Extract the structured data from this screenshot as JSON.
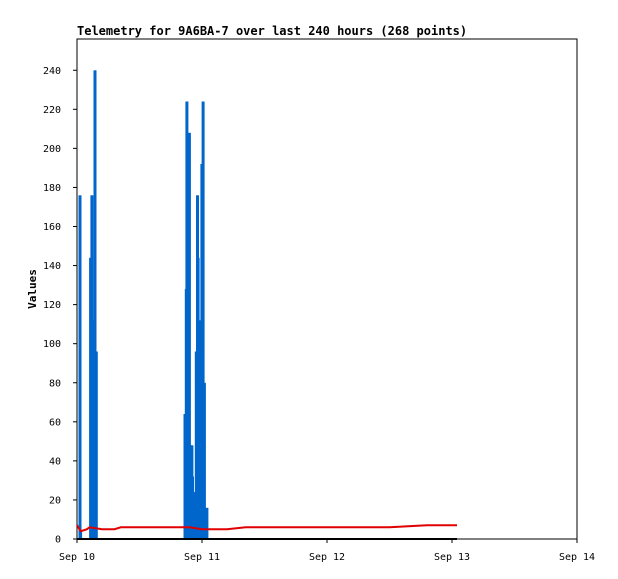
{
  "chart_data": {
    "type": "bar",
    "title": "Telemetry for 9A6BA-7 over last 240 hours (268 points)",
    "xlabel": "",
    "ylabel": "Values",
    "x_tick_labels": [
      "Sep 10",
      "Sep 11",
      "Sep 12",
      "Sep 13",
      "Sep 14"
    ],
    "xlim_days": [
      0,
      4
    ],
    "ylim": [
      0,
      256
    ],
    "y_ticks": [
      0,
      20,
      40,
      60,
      80,
      100,
      120,
      140,
      160,
      180,
      200,
      220,
      240
    ],
    "grid": false,
    "legend": "none",
    "series": [
      {
        "style": "bar",
        "color": "#0066cc",
        "points": [
          {
            "x": 0.02,
            "y": 176
          },
          {
            "x": 0.025,
            "y": 4
          },
          {
            "x": 0.105,
            "y": 144
          },
          {
            "x": 0.115,
            "y": 176
          },
          {
            "x": 0.125,
            "y": 112
          },
          {
            "x": 0.13,
            "y": 80
          },
          {
            "x": 0.14,
            "y": 240
          },
          {
            "x": 0.15,
            "y": 96
          },
          {
            "x": 0.86,
            "y": 64
          },
          {
            "x": 0.87,
            "y": 128
          },
          {
            "x": 0.875,
            "y": 224
          },
          {
            "x": 0.885,
            "y": 16
          },
          {
            "x": 0.89,
            "y": 8
          },
          {
            "x": 0.895,
            "y": 208
          },
          {
            "x": 0.905,
            "y": 48
          },
          {
            "x": 0.91,
            "y": 40
          },
          {
            "x": 0.915,
            "y": 48
          },
          {
            "x": 0.92,
            "y": 32
          },
          {
            "x": 0.93,
            "y": 16
          },
          {
            "x": 0.935,
            "y": 8
          },
          {
            "x": 0.94,
            "y": 24
          },
          {
            "x": 0.95,
            "y": 96
          },
          {
            "x": 0.96,
            "y": 176
          },
          {
            "x": 0.965,
            "y": 144
          },
          {
            "x": 0.97,
            "y": 8
          },
          {
            "x": 0.975,
            "y": 56
          },
          {
            "x": 0.985,
            "y": 112
          },
          {
            "x": 0.995,
            "y": 192
          },
          {
            "x": 1.005,
            "y": 224
          },
          {
            "x": 1.015,
            "y": 80
          },
          {
            "x": 1.025,
            "y": 8
          },
          {
            "x": 1.035,
            "y": 16
          }
        ]
      },
      {
        "style": "line",
        "color": "#e00000",
        "points": [
          {
            "x": 0.0,
            "y": 7
          },
          {
            "x": 0.03,
            "y": 4
          },
          {
            "x": 0.08,
            "y": 5
          },
          {
            "x": 0.1,
            "y": 6
          },
          {
            "x": 0.2,
            "y": 5
          },
          {
            "x": 0.3,
            "y": 5
          },
          {
            "x": 0.35,
            "y": 6
          },
          {
            "x": 0.5,
            "y": 6
          },
          {
            "x": 0.7,
            "y": 6
          },
          {
            "x": 0.8,
            "y": 6
          },
          {
            "x": 0.9,
            "y": 6
          },
          {
            "x": 1.0,
            "y": 5
          },
          {
            "x": 1.2,
            "y": 5
          },
          {
            "x": 1.35,
            "y": 6
          },
          {
            "x": 1.5,
            "y": 6
          },
          {
            "x": 1.8,
            "y": 6
          },
          {
            "x": 2.0,
            "y": 6
          },
          {
            "x": 2.3,
            "y": 6
          },
          {
            "x": 2.5,
            "y": 6
          },
          {
            "x": 2.8,
            "y": 7
          },
          {
            "x": 3.0,
            "y": 7
          },
          {
            "x": 3.04,
            "y": 7
          }
        ]
      },
      {
        "style": "line",
        "color": "#000000",
        "points": [
          {
            "x": 0.0,
            "y": 0
          },
          {
            "x": 3.04,
            "y": 0
          }
        ]
      }
    ]
  }
}
